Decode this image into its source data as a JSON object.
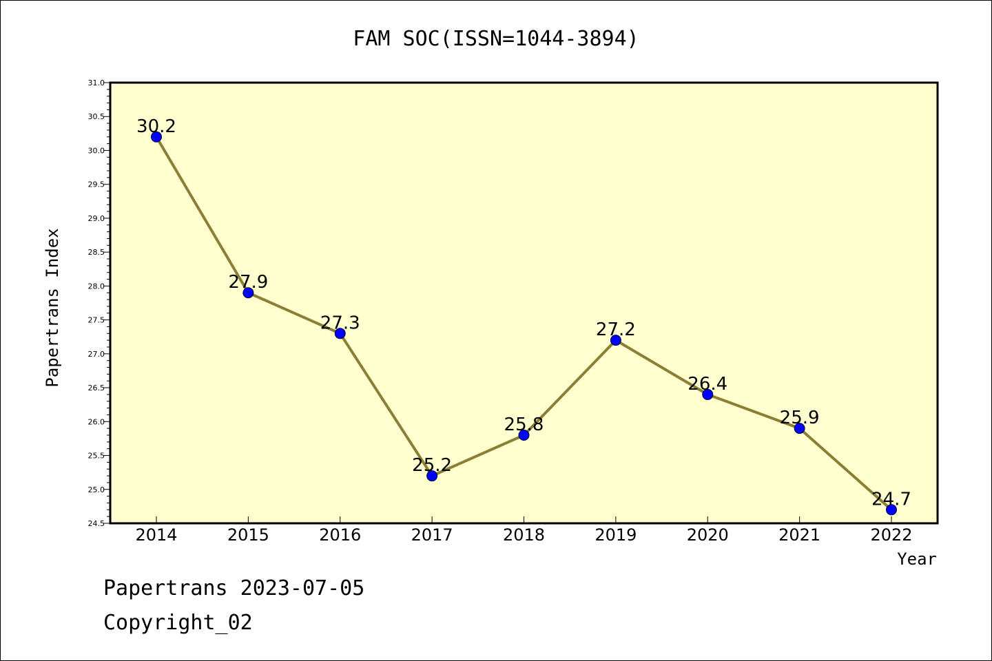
{
  "chart_data": {
    "type": "line",
    "title": "FAM SOC(ISSN=1044-3894)",
    "xlabel": "Year",
    "ylabel": "Papertrans Index",
    "categories": [
      "2014",
      "2015",
      "2016",
      "2017",
      "2018",
      "2019",
      "2020",
      "2021",
      "2022"
    ],
    "series": [
      {
        "values": [
          30.2,
          27.9,
          27.3,
          25.2,
          25.8,
          27.2,
          26.4,
          25.9,
          24.7
        ]
      }
    ],
    "data_labels": [
      "30.2",
      "27.9",
      "27.3",
      "25.2",
      "25.8",
      "27.2",
      "26.4",
      "25.9",
      "24.7"
    ],
    "ylim": [
      24.5,
      31.0
    ],
    "yticks": [
      "24.5",
      "25.0",
      "25.5",
      "26.0",
      "26.5",
      "27.0",
      "27.5",
      "28.0",
      "28.5",
      "29.0",
      "29.5",
      "30.0",
      "30.5",
      "31.0"
    ],
    "grid": false,
    "legend": "none",
    "colors": {
      "plot_background": "#FFFFD0",
      "line": "#8B7E35",
      "marker": "#0000FF"
    }
  },
  "footer": {
    "line1": "Papertrans 2023-07-05",
    "line2": "Copyright_02"
  }
}
